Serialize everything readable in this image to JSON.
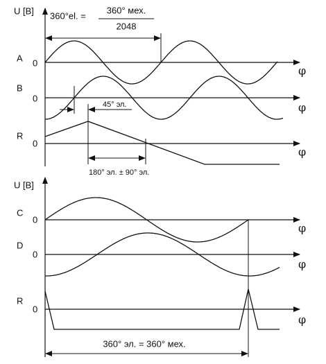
{
  "top_diagram": {
    "axis_label": "U [B]",
    "formula": {
      "lhs": "360°el. =",
      "numerator": "360° мех.",
      "denominator": "2048"
    },
    "signals": [
      {
        "name": "A",
        "zero": "0",
        "axis": "φ"
      },
      {
        "name": "B",
        "zero": "0",
        "axis": "φ"
      },
      {
        "name": "R",
        "zero": "0",
        "axis": "φ"
      }
    ],
    "annotations": [
      "45° эл.",
      "180° эл. ± 90° эл."
    ]
  },
  "bottom_diagram": {
    "axis_label": "U [B]",
    "signals": [
      {
        "name": "C",
        "zero": "0",
        "axis": "φ"
      },
      {
        "name": "D",
        "zero": "0",
        "axis": "φ"
      },
      {
        "name": "R",
        "zero": "0",
        "axis": "φ"
      }
    ],
    "annotation": "360° эл. = 360° мех."
  }
}
